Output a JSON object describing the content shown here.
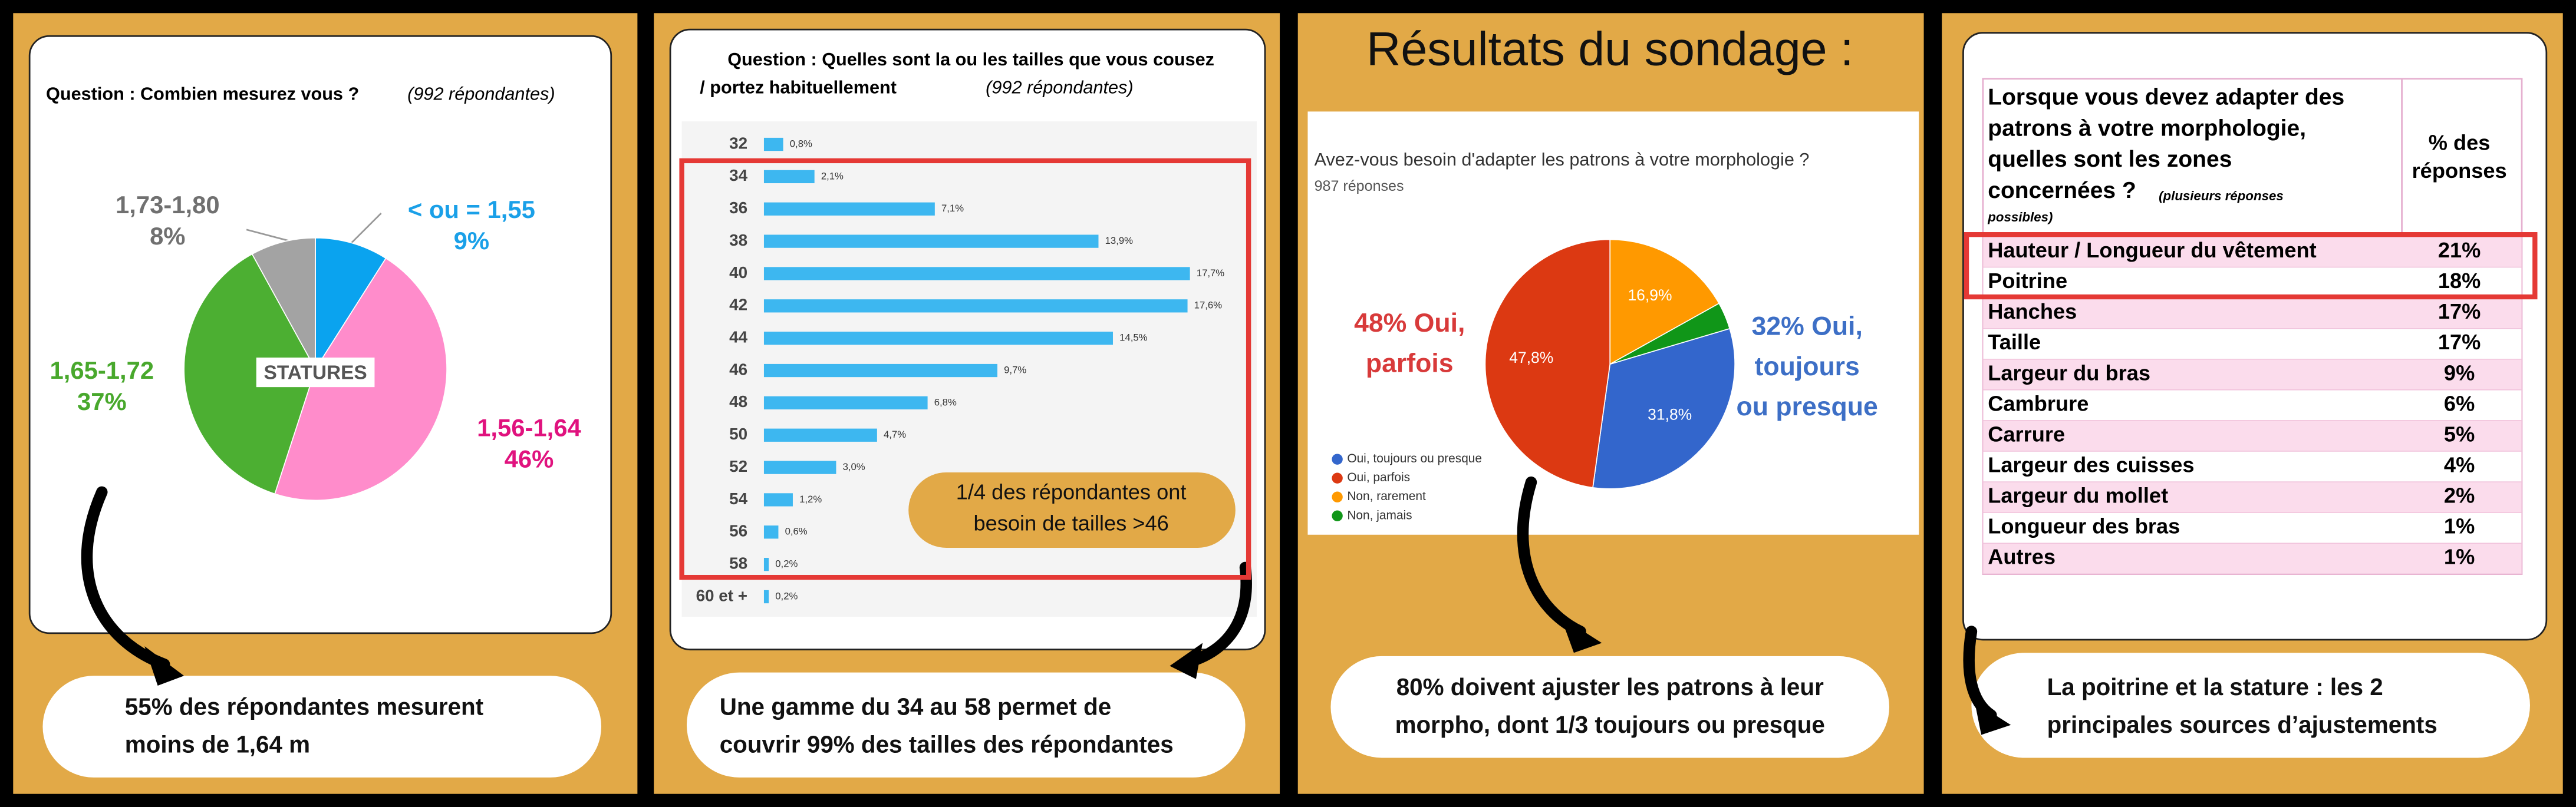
{
  "chart_data": [
    {
      "type": "pie",
      "title": "Question : Combien mesurez vous ?",
      "title_note": "(992 répondantes)",
      "center_label": "STATURES",
      "categories": [
        "< ou = 1,55",
        "1,56-1,64",
        "1,65-1,72",
        "1,73-1,80"
      ],
      "values": [
        9,
        46,
        37,
        8
      ],
      "value_labels": [
        "9%",
        "46%",
        "37%",
        "8%"
      ],
      "colors": [
        "#0aa3ef",
        "#ff8ccb",
        "#4caf32",
        "#a3a3a3"
      ],
      "label_colors": [
        "#1aa0e8",
        "#e0127e",
        "#48a82c",
        "#707070"
      ]
    },
    {
      "type": "bar",
      "orientation": "horizontal",
      "title_lines": [
        "Question : Quelles sont la ou les tailles que vous cousez",
        "/ portez habituellement"
      ],
      "title_note": "(992 répondantes)",
      "categories": [
        "32",
        "34",
        "36",
        "38",
        "40",
        "42",
        "44",
        "46",
        "48",
        "50",
        "52",
        "54",
        "56",
        "58",
        "60 et +"
      ],
      "values": [
        0.8,
        2.1,
        7.1,
        13.9,
        17.7,
        17.6,
        14.5,
        9.7,
        6.8,
        4.7,
        3.0,
        1.2,
        0.6,
        0.2,
        0.2
      ],
      "value_labels": [
        "0,8%",
        "2,1%",
        "7,1%",
        "13,9%",
        "17,7%",
        "17,6%",
        "14,5%",
        "9,7%",
        "6,8%",
        "4,7%",
        "3,0%",
        "1,2%",
        "0,6%",
        "0,2%",
        "0,2%"
      ],
      "color": "#3db7f0",
      "xlim": [
        0,
        20
      ],
      "annotation": [
        "1/4 des répondantes ont",
        "besoin de tailles >46"
      ]
    },
    {
      "type": "pie",
      "title": "Avez-vous besoin d'adapter les patrons à votre morphologie ?",
      "subtitle": "987 réponses",
      "categories": [
        "Oui, toujours ou presque",
        "Oui, parfois",
        "Non, rarement",
        "Non, jamais"
      ],
      "values": [
        31.8,
        47.8,
        16.9,
        3.5
      ],
      "value_labels": [
        "31,8%",
        "47,8%",
        "16,9%",
        null
      ],
      "colors": [
        "#3366cc",
        "#dc3912",
        "#ff9900",
        "#109618"
      ],
      "callouts": [
        {
          "lines": [
            "48% Oui,",
            "parfois"
          ],
          "color": "#d83a3a"
        },
        {
          "lines": [
            "32% Oui,",
            "toujours",
            "ou presque"
          ],
          "color": "#3d6fc6"
        }
      ]
    }
  ],
  "survey_title": "Résultats du sondage :",
  "table": {
    "question_lines": [
      "Lorsque vous devez adapter des",
      "patrons à votre morphologie,",
      "quelles sont les zones",
      "concernées ?"
    ],
    "question_note": [
      "(plusieurs réponses",
      "possibles)"
    ],
    "column": [
      "% des",
      "réponses"
    ],
    "rows": [
      [
        "Hauteur / Longueur du vêtement",
        "21%"
      ],
      [
        "Poitrine",
        "18%"
      ],
      [
        "Hanches",
        "17%"
      ],
      [
        "Taille",
        "17%"
      ],
      [
        "Largeur du bras",
        "9%"
      ],
      [
        "Cambrure",
        "6%"
      ],
      [
        "Carrure",
        "5%"
      ],
      [
        "Largeur des cuisses",
        "4%"
      ],
      [
        "Largeur du mollet",
        "2%"
      ],
      [
        "Longueur des bras",
        "1%"
      ],
      [
        "Autres",
        "1%"
      ]
    ]
  },
  "captions": [
    [
      "55% des répondantes mesurent",
      "moins de 1,64 m"
    ],
    [
      "Une gamme du 34 au 58 permet de",
      "couvrir 99% des tailles des répondantes"
    ],
    [
      "80% doivent ajuster les patrons à leur",
      "morpho, dont 1/3 toujours ou presque"
    ],
    [
      "La poitrine et la stature : les 2",
      "principales sources d’ajustements"
    ]
  ]
}
